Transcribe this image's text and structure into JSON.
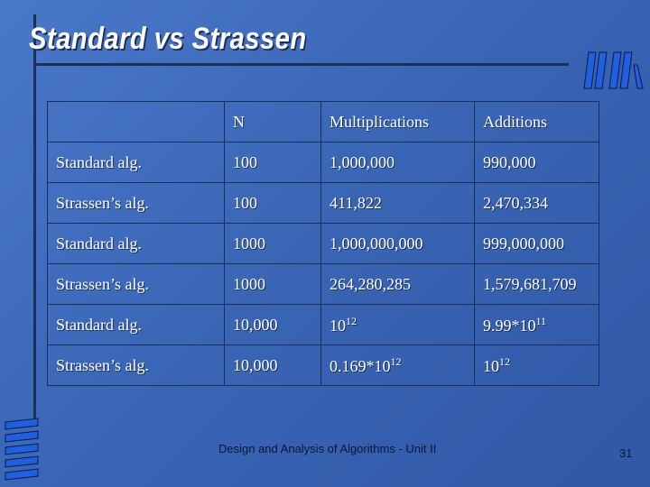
{
  "slide": {
    "title": "Standard vs Strassen",
    "footer": "Design and Analysis of Algorithms - Unit II",
    "page_number": "31"
  },
  "table": {
    "headers": [
      "",
      "N",
      "Multiplications",
      "Additions"
    ],
    "rows": [
      {
        "alg": "Standard alg.",
        "n": "100",
        "mult": "1,000,000",
        "add": "990,000"
      },
      {
        "alg": "Strassen’s alg.",
        "n": "100",
        "mult": "411,822",
        "add": "2,470,334"
      },
      {
        "alg": "Standard alg.",
        "n": "1000",
        "mult": "1,000,000,000",
        "add": "999,000,000"
      },
      {
        "alg": "Strassen’s alg.",
        "n": "1000",
        "mult": "264,280,285",
        "add": "1,579,681,709"
      },
      {
        "alg": "Standard alg.",
        "n": "10,000",
        "mult_base": "10",
        "mult_exp": "12",
        "add_base": "9.99*10",
        "add_exp": "11"
      },
      {
        "alg": "Strassen’s alg.",
        "n": "10,000",
        "mult_base": "0.169*10",
        "mult_exp": "12",
        "add_base": "10",
        "add_exp": "12"
      }
    ]
  },
  "colors": {
    "background": "#3a66b6",
    "text": "#ffffff",
    "rule": "#1c2f5a",
    "logo": "#1f5fe0"
  },
  "icons": [
    "slide-logo-icon",
    "stripes-decoration-icon"
  ]
}
